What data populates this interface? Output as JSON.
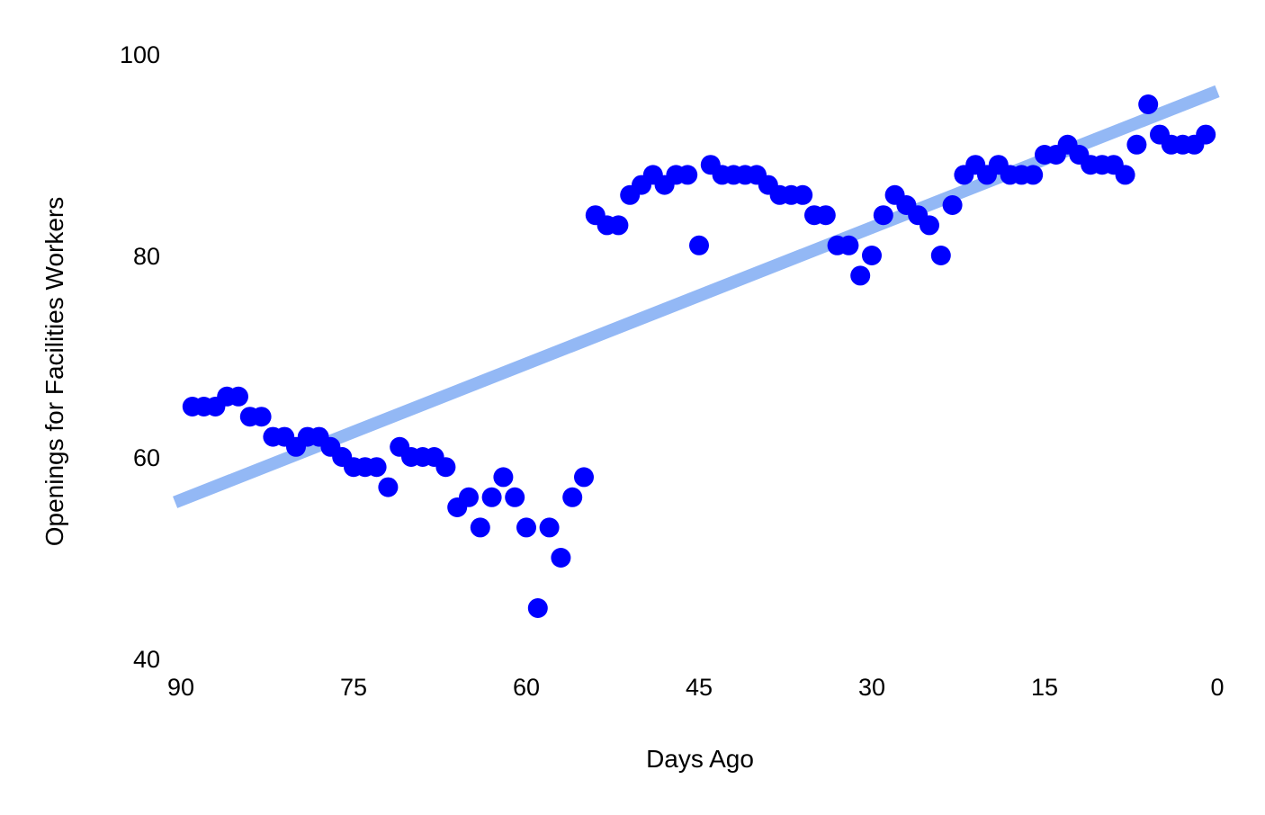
{
  "chart_data": {
    "type": "scatter",
    "title": "",
    "xlabel": "Days Ago",
    "ylabel": "Openings for Facilities Workers",
    "xlim": [
      90,
      0
    ],
    "ylim": [
      40,
      100
    ],
    "x_reversed": true,
    "x_ticks": [
      90,
      75,
      60,
      45,
      30,
      15,
      0
    ],
    "y_ticks": [
      40,
      60,
      80,
      100
    ],
    "grid": false,
    "legend": "none",
    "colors": {
      "points": "#0000ff",
      "trend": "#93b8f5",
      "text": "#000000",
      "background": "#ffffff"
    },
    "series": [
      {
        "kind": "points",
        "x": [
          89,
          88,
          87,
          86,
          85,
          84,
          83,
          82,
          81,
          80,
          79,
          78,
          77,
          76,
          75,
          74,
          73,
          72,
          71,
          70,
          69,
          68,
          67,
          66,
          65,
          64,
          63,
          62,
          61,
          60,
          59,
          58,
          57,
          56,
          55,
          54,
          53,
          52,
          51,
          50,
          49,
          48,
          47,
          46,
          45,
          44,
          43,
          42,
          41,
          40,
          39,
          38,
          37,
          36,
          35,
          34,
          33,
          32,
          31,
          30,
          29,
          28,
          27,
          26,
          25,
          24,
          23,
          22,
          21,
          20,
          19,
          18,
          17,
          16,
          15,
          14,
          13,
          12,
          11,
          10,
          9,
          8,
          7,
          6,
          5,
          4,
          3,
          2,
          1
        ],
        "y": [
          65,
          65,
          65,
          66,
          66,
          64,
          64,
          62,
          62,
          61,
          62,
          62,
          61,
          60,
          59,
          59,
          59,
          57,
          61,
          60,
          60,
          60,
          59,
          55,
          56,
          53,
          56,
          58,
          56,
          53,
          45,
          53,
          50,
          56,
          58,
          84,
          83,
          83,
          86,
          87,
          88,
          87,
          88,
          88,
          81,
          89,
          88,
          88,
          88,
          88,
          87,
          86,
          86,
          86,
          84,
          84,
          81,
          81,
          78,
          80,
          84,
          86,
          85,
          84,
          83,
          80,
          85,
          88,
          89,
          88,
          89,
          88,
          88,
          88,
          90,
          90,
          91,
          90,
          89,
          89,
          89,
          88,
          91,
          95,
          92,
          91,
          91,
          91,
          92
        ]
      },
      {
        "kind": "trend",
        "x": [
          90.5,
          0
        ],
        "y": [
          55.5,
          96.3
        ]
      }
    ]
  }
}
